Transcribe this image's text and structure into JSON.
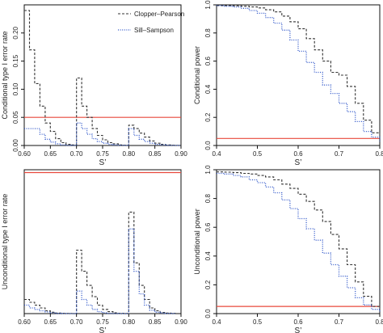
{
  "colors": {
    "cp": "#333333",
    "ss": "#2f56c9",
    "ref": "#e8483c",
    "axis": "#111111"
  },
  "legend": [
    "Clopper–Pearson",
    "Sill–Sampson"
  ],
  "chart_data": [
    {
      "type": "line",
      "step": true,
      "ylabel": "Conditional type I error rate",
      "xlabel": "S’",
      "xlim": [
        0.6,
        0.9
      ],
      "ylim": [
        0,
        0.25
      ],
      "xticks": [
        "0.60",
        "0.65",
        "0.70",
        "0.75",
        "0.80",
        "0.85",
        "0.90"
      ],
      "xtickvals": [
        0.6,
        0.65,
        0.7,
        0.75,
        0.8,
        0.85,
        0.9
      ],
      "yticks": [
        "0.00",
        "0.05",
        "0.10",
        "0.15",
        "0.20"
      ],
      "ytickvals": [
        0,
        0.05,
        0.1,
        0.15,
        0.2
      ],
      "legend_position": "top-right",
      "reference_line": {
        "y": 0.05
      },
      "series": [
        {
          "name": "Clopper–Pearson",
          "style": "dashed",
          "x": [
            0.6,
            0.61,
            0.62,
            0.63,
            0.64,
            0.65,
            0.66,
            0.67,
            0.68,
            0.69,
            0.7,
            0.71,
            0.72,
            0.73,
            0.74,
            0.75,
            0.76,
            0.77,
            0.78,
            0.79,
            0.8,
            0.81,
            0.82,
            0.83,
            0.84,
            0.85,
            0.86,
            0.87,
            0.88,
            0.89
          ],
          "y": [
            0.24,
            0.17,
            0.11,
            0.07,
            0.04,
            0.025,
            0.012,
            0.005,
            0.002,
            0.001,
            0.12,
            0.07,
            0.05,
            0.03,
            0.018,
            0.01,
            0.005,
            0.003,
            0.001,
            0.0005,
            0.036,
            0.03,
            0.022,
            0.015,
            0.008,
            0.004,
            0.002,
            0.001,
            0.0005,
            0.0001
          ]
        },
        {
          "name": "Sill–Sampson",
          "style": "dotted",
          "x": [
            0.6,
            0.61,
            0.62,
            0.63,
            0.64,
            0.65,
            0.66,
            0.67,
            0.68,
            0.69,
            0.7,
            0.71,
            0.72,
            0.73,
            0.74,
            0.75,
            0.76,
            0.77,
            0.78,
            0.79,
            0.8,
            0.81,
            0.82,
            0.83,
            0.84,
            0.85,
            0.86,
            0.87,
            0.88,
            0.89
          ],
          "y": [
            0.03,
            0.03,
            0.03,
            0.02,
            0.011,
            0.006,
            0.003,
            0.001,
            0.0005,
            0.0001,
            0.04,
            0.03,
            0.02,
            0.012,
            0.007,
            0.004,
            0.002,
            0.001,
            0.0005,
            0.0001,
            0.03,
            0.018,
            0.011,
            0.007,
            0.004,
            0.002,
            0.001,
            0.0005,
            0.0001,
            0.0001
          ]
        }
      ]
    },
    {
      "type": "line",
      "step": true,
      "ylabel": "Conditional power",
      "xlabel": "S’",
      "xlim": [
        0.4,
        0.8
      ],
      "ylim": [
        0,
        1
      ],
      "xticks": [
        "0.4",
        "0.5",
        "0.6",
        "0.7",
        "0.8"
      ],
      "xtickvals": [
        0.4,
        0.5,
        0.6,
        0.7,
        0.8
      ],
      "yticks": [
        "0.0",
        "0.2",
        "0.4",
        "0.6",
        "0.8",
        "1.0"
      ],
      "ytickvals": [
        0,
        0.2,
        0.4,
        0.6,
        0.8,
        1.0
      ],
      "reference_line": {
        "y": 0.05
      },
      "series": [
        {
          "name": "Clopper–Pearson",
          "style": "dashed",
          "x": [
            0.4,
            0.42,
            0.44,
            0.46,
            0.48,
            0.5,
            0.52,
            0.54,
            0.56,
            0.58,
            0.6,
            0.62,
            0.64,
            0.66,
            0.68,
            0.7,
            0.72,
            0.74,
            0.76,
            0.78,
            0.8
          ],
          "y": [
            0.995,
            0.995,
            0.993,
            0.99,
            0.985,
            0.978,
            0.965,
            0.95,
            0.92,
            0.88,
            0.83,
            0.76,
            0.68,
            0.6,
            0.52,
            0.5,
            0.42,
            0.3,
            0.18,
            0.09,
            0.04
          ]
        },
        {
          "name": "Sill–Sampson",
          "style": "dotted",
          "x": [
            0.4,
            0.42,
            0.44,
            0.46,
            0.48,
            0.5,
            0.52,
            0.54,
            0.56,
            0.58,
            0.6,
            0.62,
            0.64,
            0.66,
            0.68,
            0.7,
            0.72,
            0.74,
            0.76,
            0.78,
            0.8
          ],
          "y": [
            0.995,
            0.99,
            0.985,
            0.975,
            0.96,
            0.94,
            0.91,
            0.87,
            0.82,
            0.75,
            0.67,
            0.59,
            0.52,
            0.43,
            0.37,
            0.3,
            0.24,
            0.17,
            0.1,
            0.06,
            0.03
          ]
        }
      ]
    },
    {
      "type": "line",
      "step": true,
      "ylabel": "Unconditional type I error rate",
      "xlabel": "S’",
      "xlim": [
        0.6,
        0.9
      ],
      "ylim": [
        0,
        0.051
      ],
      "xticks": [
        "0.60",
        "0.65",
        "0.70",
        "0.75",
        "0.80",
        "0.85",
        "0.90"
      ],
      "xtickvals": [
        0.6,
        0.65,
        0.7,
        0.75,
        0.8,
        0.85,
        0.9
      ],
      "yticks": [],
      "ytickvals": [],
      "reference_line": {
        "y": 0.05
      },
      "series": [
        {
          "name": "Clopper–Pearson",
          "style": "dashed",
          "x": [
            0.6,
            0.61,
            0.62,
            0.63,
            0.64,
            0.65,
            0.66,
            0.67,
            0.68,
            0.69,
            0.7,
            0.71,
            0.72,
            0.73,
            0.74,
            0.75,
            0.76,
            0.77,
            0.78,
            0.79,
            0.8,
            0.81,
            0.82,
            0.83,
            0.84,
            0.85,
            0.86,
            0.87,
            0.88
          ],
          "y": [
            0.005,
            0.004,
            0.003,
            0.002,
            0.001,
            0.0005,
            0.0002,
            0.0001,
            5e-05,
            2e-05,
            0.0225,
            0.015,
            0.01,
            0.006,
            0.003,
            0.0015,
            0.0007,
            0.0003,
            0.0001,
            5e-05,
            0.036,
            0.018,
            0.01,
            0.005,
            0.002,
            0.001,
            0.0004,
            0.0002,
            0.0001
          ]
        },
        {
          "name": "Sill–Sampson",
          "style": "dotted",
          "x": [
            0.6,
            0.61,
            0.62,
            0.63,
            0.64,
            0.65,
            0.66,
            0.67,
            0.68,
            0.69,
            0.7,
            0.71,
            0.72,
            0.73,
            0.74,
            0.75,
            0.76,
            0.77,
            0.78,
            0.79,
            0.8,
            0.81,
            0.82,
            0.83,
            0.84,
            0.85,
            0.86,
            0.87,
            0.88
          ],
          "y": [
            0.003,
            0.002,
            0.0015,
            0.001,
            0.0006,
            0.0003,
            0.0001,
            5e-05,
            2e-05,
            1e-05,
            0.008,
            0.005,
            0.003,
            0.0015,
            0.0007,
            0.0003,
            0.0001,
            5e-05,
            2e-05,
            1e-05,
            0.03,
            0.015,
            0.007,
            0.003,
            0.0012,
            0.0005,
            0.0002,
            0.0001,
            5e-05
          ]
        }
      ]
    },
    {
      "type": "line",
      "step": true,
      "ylabel": "Unconditional power",
      "xlabel": "S’",
      "xlim": [
        0.4,
        0.8
      ],
      "ylim": [
        0,
        1
      ],
      "xticks": [
        "0.4",
        "0.5",
        "0.6",
        "0.7",
        "0.8"
      ],
      "xtickvals": [
        0.4,
        0.5,
        0.6,
        0.7,
        0.8
      ],
      "yticks": [
        "0.0",
        "0.2",
        "0.4",
        "0.6",
        "0.8",
        "1.0"
      ],
      "ytickvals": [
        0,
        0.2,
        0.4,
        0.6,
        0.8,
        1.0
      ],
      "reference_line": {
        "y": 0.05
      },
      "series": [
        {
          "name": "Clopper–Pearson",
          "style": "dashed",
          "x": [
            0.4,
            0.42,
            0.44,
            0.46,
            0.48,
            0.5,
            0.52,
            0.54,
            0.56,
            0.58,
            0.6,
            0.62,
            0.64,
            0.66,
            0.68,
            0.7,
            0.72,
            0.74,
            0.76,
            0.78,
            0.8
          ],
          "y": [
            0.985,
            0.983,
            0.98,
            0.975,
            0.97,
            0.96,
            0.95,
            0.93,
            0.9,
            0.87,
            0.83,
            0.78,
            0.72,
            0.64,
            0.55,
            0.45,
            0.34,
            0.22,
            0.12,
            0.05,
            0.02
          ]
        },
        {
          "name": "Sill–Sampson",
          "style": "dotted",
          "x": [
            0.4,
            0.42,
            0.44,
            0.46,
            0.48,
            0.5,
            0.52,
            0.54,
            0.56,
            0.58,
            0.6,
            0.62,
            0.64,
            0.66,
            0.68,
            0.7,
            0.72,
            0.74,
            0.76,
            0.78,
            0.8
          ],
          "y": [
            0.975,
            0.97,
            0.96,
            0.95,
            0.93,
            0.91,
            0.88,
            0.84,
            0.79,
            0.73,
            0.66,
            0.59,
            0.51,
            0.42,
            0.34,
            0.26,
            0.18,
            0.11,
            0.06,
            0.03,
            0.01
          ]
        }
      ]
    }
  ]
}
